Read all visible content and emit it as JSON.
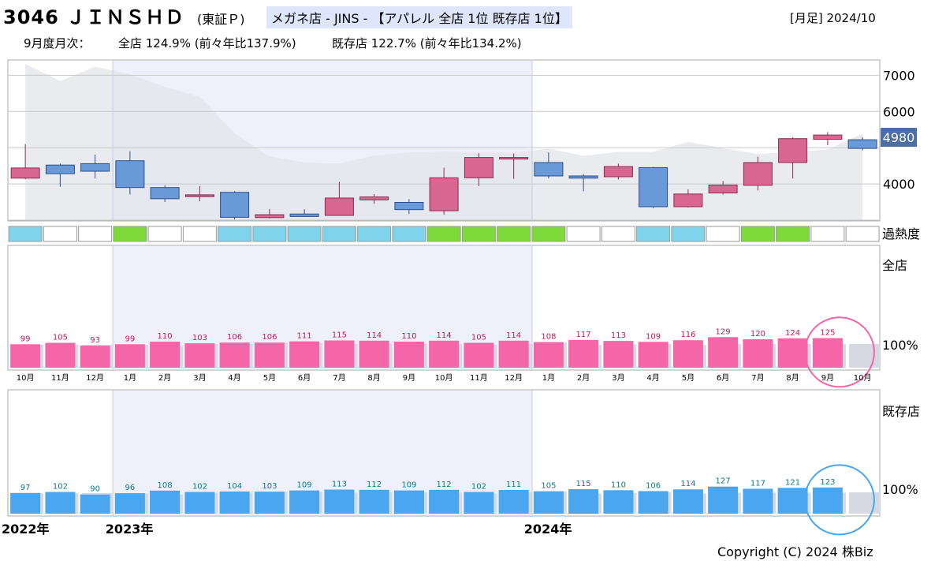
{
  "header": {
    "title": "3046 ＪＩＮＳＨＤ",
    "market": "(東証Ｐ)",
    "category": "メガネ店 - JINS - 【アパレル 全店 1位 既存店 1位】",
    "period": "[月足] 2024/10"
  },
  "subheader": {
    "label": "9月度月次：",
    "all_stores": "全店 124.9% (前々年比137.9%)",
    "existing_stores": "既存店 122.7% (前々年比134.2%)"
  },
  "copyright": "Copyright (C) 2024 株Biz",
  "colors": {
    "up": "#d9668f",
    "down": "#6a99d8",
    "all_bar": "#f466a8",
    "existing_bar": "#4aa6ee",
    "cool": "#7fd3ea",
    "hot": "#7ed93a",
    "neutral": "#ffffff",
    "current_price_bg": "#4b6ea5"
  },
  "chart_data": [
    {
      "type": "candlestick",
      "title": "",
      "ylim": [
        3000,
        7400
      ],
      "yticks": [
        "7000",
        "6000",
        "4000"
      ],
      "current_price_label": "4980",
      "grid": true,
      "months": [
        "10月",
        "11月",
        "12月",
        "1月",
        "2月",
        "3月",
        "4月",
        "5月",
        "6月",
        "7月",
        "8月",
        "9月",
        "10月",
        "11月",
        "12月",
        "1月",
        "2月",
        "3月",
        "4月",
        "5月",
        "6月",
        "7月",
        "8月",
        "9月",
        "10月"
      ],
      "years": [
        {
          "label": "2022年",
          "start_index": 0
        },
        {
          "label": "2023年",
          "start_index": 3
        },
        {
          "label": "2024年",
          "start_index": 15
        }
      ],
      "ohlc": [
        {
          "o": 4160,
          "h": 5100,
          "l": 4130,
          "c": 4440
        },
        {
          "o": 4520,
          "h": 4560,
          "l": 3920,
          "c": 4280
        },
        {
          "o": 4560,
          "h": 4810,
          "l": 4150,
          "c": 4350
        },
        {
          "o": 4640,
          "h": 4900,
          "l": 3710,
          "c": 3900
        },
        {
          "o": 3900,
          "h": 3960,
          "l": 3500,
          "c": 3590
        },
        {
          "o": 3650,
          "h": 3940,
          "l": 3520,
          "c": 3700
        },
        {
          "o": 3770,
          "h": 3800,
          "l": 3020,
          "c": 3080
        },
        {
          "o": 3070,
          "h": 3310,
          "l": 3050,
          "c": 3150
        },
        {
          "o": 3170,
          "h": 3300,
          "l": 3090,
          "c": 3100
        },
        {
          "o": 3130,
          "h": 4060,
          "l": 3120,
          "c": 3610
        },
        {
          "o": 3560,
          "h": 3720,
          "l": 3450,
          "c": 3640
        },
        {
          "o": 3490,
          "h": 3580,
          "l": 3170,
          "c": 3290
        },
        {
          "o": 3260,
          "h": 4450,
          "l": 3150,
          "c": 4170
        },
        {
          "o": 4170,
          "h": 4850,
          "l": 3940,
          "c": 4730
        },
        {
          "o": 4720,
          "h": 4840,
          "l": 4140,
          "c": 4730
        },
        {
          "o": 4590,
          "h": 4870,
          "l": 4150,
          "c": 4220
        },
        {
          "o": 4220,
          "h": 4270,
          "l": 3800,
          "c": 4160
        },
        {
          "o": 4200,
          "h": 4560,
          "l": 4120,
          "c": 4480
        },
        {
          "o": 4450,
          "h": 4470,
          "l": 3330,
          "c": 3370
        },
        {
          "o": 3370,
          "h": 3850,
          "l": 3350,
          "c": 3720
        },
        {
          "o": 3750,
          "h": 4080,
          "l": 3710,
          "c": 3970
        },
        {
          "o": 3960,
          "h": 4750,
          "l": 3820,
          "c": 4590
        },
        {
          "o": 4590,
          "h": 5290,
          "l": 4150,
          "c": 5250
        },
        {
          "o": 5230,
          "h": 5430,
          "l": 5070,
          "c": 5350
        },
        {
          "o": 5220,
          "h": 5290,
          "l": 4930,
          "c": 4980
        }
      ],
      "volume": [
        7280,
        6480,
        7150,
        6800,
        6210,
        5750,
        4050,
        2980,
        2680,
        2640,
        3010,
        3150,
        3190,
        3170,
        3140,
        3340,
        3000,
        3180,
        3180,
        3650,
        3350,
        3080,
        3190,
        3290,
        4030
      ],
      "heat": [
        "cool",
        "neutral",
        "neutral",
        "hot",
        "neutral",
        "neutral",
        "cool",
        "cool",
        "cool",
        "cool",
        "cool",
        "cool",
        "hot",
        "hot",
        "hot",
        "hot",
        "neutral",
        "neutral",
        "cool",
        "cool",
        "neutral",
        "hot",
        "hot",
        "neutral",
        "neutral"
      ],
      "heat_label": "過熱度"
    },
    {
      "type": "bar",
      "title": "全店",
      "baseline_label": "100%",
      "categories": [
        "10月",
        "11月",
        "12月",
        "1月",
        "2月",
        "3月",
        "4月",
        "5月",
        "6月",
        "7月",
        "8月",
        "9月",
        "10月",
        "11月",
        "12月",
        "1月",
        "2月",
        "3月",
        "4月",
        "5月",
        "6月",
        "7月",
        "8月",
        "9月",
        "10月"
      ],
      "values": [
        99,
        105,
        93,
        99,
        110,
        103,
        106,
        106,
        111,
        115,
        114,
        110,
        114,
        105,
        114,
        108,
        117,
        113,
        109,
        116,
        129,
        120,
        124,
        125,
        null
      ],
      "prior_year": [
        97,
        98,
        97,
        96,
        92,
        100,
        100,
        105,
        104,
        100,
        102,
        101,
        100,
        96,
        101,
        105,
        96,
        99,
        101,
        96,
        100,
        100,
        100,
        100,
        100
      ],
      "highlight_index": 23
    },
    {
      "type": "bar",
      "title": "既存店",
      "baseline_label": "100%",
      "categories": [
        "10月",
        "11月",
        "12月",
        "1月",
        "2月",
        "3月",
        "4月",
        "5月",
        "6月",
        "7月",
        "8月",
        "9月",
        "10月",
        "11月",
        "12月",
        "1月",
        "2月",
        "3月",
        "4月",
        "5月",
        "6月",
        "7月",
        "8月",
        "9月",
        "10月"
      ],
      "values": [
        97,
        102,
        90,
        96,
        108,
        102,
        104,
        103,
        109,
        113,
        112,
        109,
        112,
        102,
        111,
        105,
        115,
        110,
        106,
        114,
        127,
        117,
        121,
        123,
        null
      ],
      "prior_year": [
        96,
        97,
        96,
        95,
        90,
        98,
        99,
        104,
        103,
        99,
        101,
        100,
        99,
        94,
        100,
        104,
        95,
        98,
        100,
        95,
        99,
        99,
        99,
        99,
        100
      ],
      "highlight_index": 23
    }
  ]
}
